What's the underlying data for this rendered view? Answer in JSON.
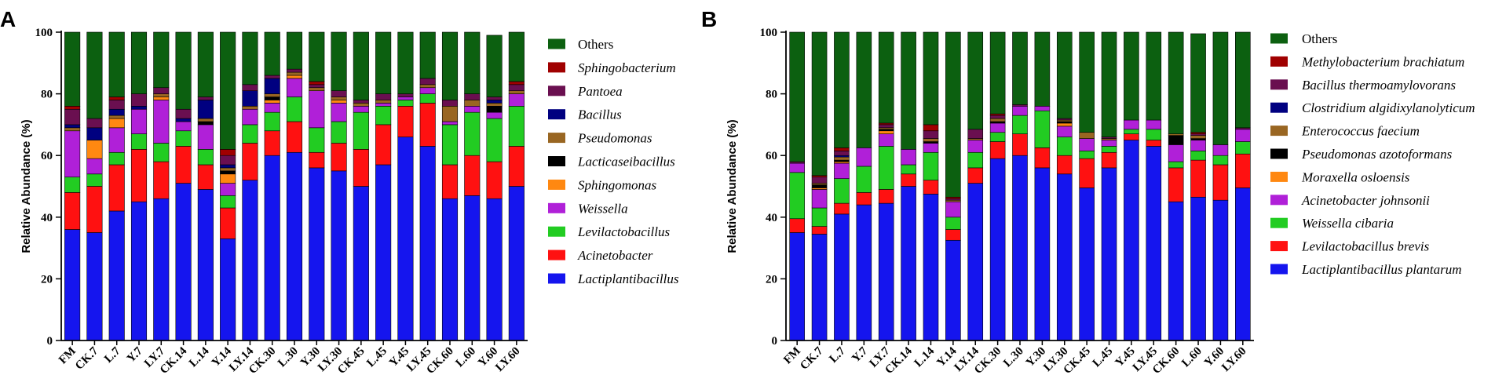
{
  "colors": {
    "Others": "#0c6010",
    "Sphingobacterium": "#a00000",
    "Pantoea": "#6a0f50",
    "Bacillus": "#000080",
    "Pseudomonas": "#996622",
    "Lacticaseibacillus": "#000000",
    "Sphingomonas": "#ff8811",
    "Weissella": "#b020d8",
    "Levilactobacillus": "#22cc22",
    "Acinetobacter": "#ff1111",
    "Lactiplantibacillus": "#1515ee"
  },
  "chart_data": [
    {
      "type": "bar",
      "stacked": true,
      "panel": "A",
      "ylabel": "Relative Abundance (%)",
      "ylim": [
        0,
        100
      ],
      "yticks": [
        "0",
        "20",
        "40",
        "60",
        "80",
        "100"
      ],
      "categories": [
        "FM",
        "CK.7",
        "L.7",
        "Y.7",
        "LY.7",
        "CK.14",
        "L.14",
        "Y.14",
        "LY.14",
        "CK.30",
        "L.30",
        "Y.30",
        "LY.30",
        "CK.45",
        "L.45",
        "Y.45",
        "LY.45",
        "CK.60",
        "L.60",
        "Y.60",
        "LY.60"
      ],
      "series": [
        {
          "name": "Lactiplantibacillus",
          "italic": true,
          "color_key": "Lactiplantibacillus",
          "values": [
            36,
            35,
            42,
            45,
            46,
            51,
            49,
            33,
            52,
            60,
            61,
            56,
            55,
            50,
            57,
            66,
            63,
            46,
            47,
            46,
            50
          ]
        },
        {
          "name": "Acinetobacter",
          "italic": true,
          "color_key": "Acinetobacter",
          "values": [
            12,
            15,
            15,
            17,
            12,
            12,
            8,
            10,
            12,
            8,
            10,
            5,
            9,
            12,
            13,
            10,
            14,
            11,
            13,
            12,
            13
          ]
        },
        {
          "name": "Levilactobacillus",
          "italic": true,
          "color_key": "Levilactobacillus",
          "values": [
            5,
            4,
            4,
            5,
            6,
            5,
            5,
            4,
            6,
            6,
            8,
            8,
            7,
            12,
            6,
            2,
            3,
            13,
            14,
            14,
            13
          ]
        },
        {
          "name": "Weissella",
          "italic": true,
          "color_key": "Weissella",
          "values": [
            15,
            5,
            8,
            8,
            14,
            3,
            8,
            4,
            5,
            3,
            6,
            12,
            6,
            2,
            1,
            1,
            2,
            1,
            2,
            2,
            4
          ]
        },
        {
          "name": "Sphingomonas",
          "italic": true,
          "color_key": "Sphingomonas",
          "values": [
            0,
            6,
            3,
            0,
            1,
            0,
            0,
            3,
            0,
            1,
            1,
            0,
            1,
            0,
            0,
            0,
            0,
            0,
            0,
            0,
            0
          ]
        },
        {
          "name": "Lacticaseibacillus",
          "italic": true,
          "color_key": "Lacticaseibacillus",
          "values": [
            0,
            0,
            0,
            0,
            0,
            0,
            1,
            1,
            0,
            1,
            0,
            0,
            0,
            0,
            0,
            0,
            0,
            0,
            0,
            2,
            0
          ]
        },
        {
          "name": "Pseudomonas",
          "italic": true,
          "color_key": "Pseudomonas",
          "values": [
            1,
            0,
            1,
            0,
            1,
            0,
            1,
            1,
            1,
            1,
            1,
            1,
            1,
            1,
            1,
            0,
            1,
            5,
            2,
            1,
            1
          ]
        },
        {
          "name": "Bacillus",
          "italic": true,
          "color_key": "Bacillus",
          "values": [
            1,
            4,
            2,
            1,
            0,
            1,
            6,
            1,
            5,
            5,
            0,
            0,
            0,
            0,
            0,
            0,
            0,
            0,
            0,
            1,
            0
          ]
        },
        {
          "name": "Pantoea",
          "italic": true,
          "color_key": "Pantoea",
          "values": [
            5,
            3,
            3,
            4,
            2,
            3,
            1,
            3,
            2,
            1,
            1,
            1,
            2,
            1,
            2,
            1,
            2,
            2,
            2,
            1,
            2
          ]
        },
        {
          "name": "Sphingobacterium",
          "italic": true,
          "color_key": "Sphingobacterium",
          "values": [
            1,
            0,
            1,
            0,
            0,
            0,
            0,
            2,
            0,
            0,
            0,
            1,
            0,
            0,
            0,
            0,
            0,
            0,
            0,
            0,
            1
          ]
        },
        {
          "name": "Others",
          "italic": false,
          "color_key": "Others",
          "values": [
            24,
            28,
            21,
            20,
            18,
            25,
            21,
            38,
            17,
            14,
            12,
            16,
            19,
            22,
            20,
            20,
            15,
            22,
            20,
            20,
            16
          ]
        }
      ]
    },
    {
      "type": "bar",
      "stacked": true,
      "panel": "B",
      "ylabel": "Relative Abundance (%)",
      "ylim": [
        0,
        100
      ],
      "yticks": [
        "0",
        "20",
        "40",
        "60",
        "80",
        "100"
      ],
      "categories": [
        "FM",
        "CK.7",
        "L.7",
        "Y.7",
        "LY.7",
        "CK.14",
        "L.14",
        "Y.14",
        "LY.14",
        "CK.30",
        "L.30",
        "Y.30",
        "LY.30",
        "CK.45",
        "L.45",
        "Y.45",
        "LY.45",
        "CK.60",
        "L.60",
        "Y.60",
        "LY.60"
      ],
      "series": [
        {
          "name": "Lactiplantibacillus plantarum",
          "italic": true,
          "color_key": "Lactiplantibacillus",
          "values": [
            35,
            34.5,
            41,
            44,
            44.5,
            50,
            47.5,
            32.5,
            51,
            59,
            60,
            56,
            54,
            49.5,
            56,
            65,
            63,
            45,
            46.5,
            45.5,
            49.5
          ]
        },
        {
          "name": "Levilactobacillus brevis",
          "italic": true,
          "color_key": "Acinetobacter",
          "values": [
            4.5,
            2.5,
            3.5,
            4,
            4.5,
            4,
            4.5,
            3.5,
            5,
            5.5,
            7,
            6.5,
            6,
            9.5,
            5,
            2,
            2,
            11,
            12,
            11.5,
            11
          ]
        },
        {
          "name": "Weissella cibaria",
          "italic": true,
          "color_key": "Levilactobacillus",
          "values": [
            15,
            6,
            8,
            8.5,
            14,
            3,
            9,
            4,
            5,
            3,
            6,
            12,
            6,
            2.5,
            2,
            1.5,
            3.5,
            2,
            3,
            3,
            4
          ]
        },
        {
          "name": "Acinetobacter johnsonii",
          "italic": true,
          "color_key": "Weissella",
          "values": [
            3,
            6,
            5,
            6,
            4,
            5,
            3,
            5,
            4,
            3,
            3,
            1.5,
            3.5,
            4,
            2,
            3,
            3,
            5.5,
            3.5,
            3.5,
            4
          ]
        },
        {
          "name": "Moraxella osloensis",
          "italic": true,
          "color_key": "Sphingomonas",
          "values": [
            0,
            0.5,
            0.5,
            0,
            1,
            0,
            0,
            0,
            0,
            0,
            0,
            0,
            1,
            0,
            0,
            0,
            0,
            0,
            0,
            0,
            0
          ]
        },
        {
          "name": "Pseudomonas azotoformans",
          "italic": true,
          "color_key": "Lacticaseibacillus",
          "values": [
            0,
            1,
            0.5,
            0,
            0.5,
            0,
            0.5,
            0,
            0,
            0.5,
            0,
            0,
            0.5,
            0,
            0,
            0,
            0,
            3,
            0.5,
            0,
            0
          ]
        },
        {
          "name": "Enterococcus faecium",
          "italic": true,
          "color_key": "Pseudomonas",
          "values": [
            0,
            0.5,
            1,
            0,
            0.5,
            0,
            1,
            0.5,
            0.5,
            1,
            0,
            0,
            0.5,
            2,
            0.5,
            0,
            0,
            0.5,
            1,
            0,
            0
          ]
        },
        {
          "name": "Clostridium algidixylanolyticum",
          "italic": true,
          "color_key": "Bacillus",
          "values": [
            0,
            0,
            0.5,
            0,
            0,
            0,
            0,
            0,
            0,
            0,
            0,
            0,
            0,
            0,
            0,
            0,
            0,
            0,
            0,
            0,
            0
          ]
        },
        {
          "name": "Bacillus thermoamylovorans",
          "italic": true,
          "color_key": "Pantoea",
          "values": [
            0.5,
            2,
            1.5,
            0,
            1,
            0,
            2.5,
            0.5,
            3,
            1,
            0.5,
            0,
            0.5,
            0,
            0.5,
            0,
            0,
            0,
            0.5,
            0,
            0.5
          ]
        },
        {
          "name": "Methylobacterium brachiatum",
          "italic": true,
          "color_key": "Sphingobacterium",
          "values": [
            0,
            0.5,
            1,
            0,
            0.5,
            0,
            2,
            0.5,
            0,
            0.5,
            0,
            0,
            0,
            0,
            0,
            0,
            0,
            0,
            0.5,
            0,
            0
          ]
        },
        {
          "name": "Others",
          "italic": false,
          "color_key": "Others",
          "values": [
            42,
            46.5,
            37.5,
            37.5,
            29.5,
            38,
            30,
            53.5,
            31.5,
            26.5,
            23.5,
            24,
            28,
            32.5,
            34,
            28.5,
            28.5,
            33,
            32,
            36.5,
            31
          ]
        }
      ]
    }
  ]
}
